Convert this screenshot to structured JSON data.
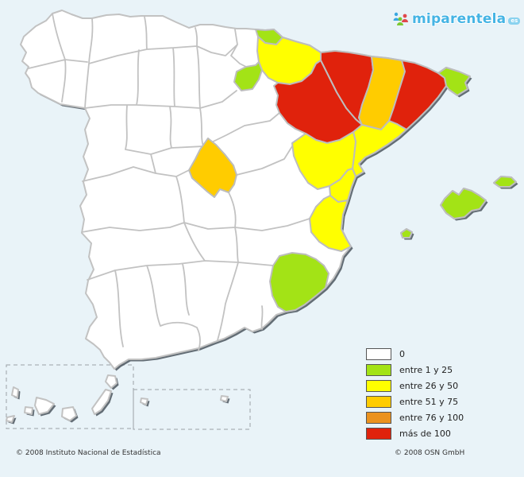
{
  "logo": {
    "brand": "miparentela",
    "suffix": "es"
  },
  "legend": {
    "items": [
      {
        "label": "0",
        "color": "#FFFFFF"
      },
      {
        "label": "entre 1 y 25",
        "color": "#A3E316"
      },
      {
        "label": "entre 26 y 50",
        "color": "#FFFF00"
      },
      {
        "label": "entre 51 y 75",
        "color": "#FFCC00"
      },
      {
        "label": "entre 76 y 100",
        "color": "#EB921F"
      },
      {
        "label": "más de 100",
        "color": "#E0220C"
      }
    ]
  },
  "footer": {
    "left": "© 2008 Instituto Nacional de Estadística",
    "right": "© 2008 OSN GmbH"
  },
  "map": {
    "country": "España",
    "sea_color": "#E9F3F8",
    "shadow_color": "#4C565F",
    "land_color": "#FFFFFF",
    "border_color": "#C2C2C2",
    "default_category": "0",
    "regions": [
      {
        "name": "Gipuzkoa",
        "slug": "gipuzkoa",
        "category": "entre 1 y 25"
      },
      {
        "name": "La Rioja",
        "slug": "la-rioja",
        "category": "entre 1 y 25"
      },
      {
        "name": "Navarra",
        "slug": "navarra",
        "category": "entre 26 y 50"
      },
      {
        "name": "Huesca",
        "slug": "huesca",
        "category": "más de 100"
      },
      {
        "name": "Zaragoza",
        "slug": "zaragoza",
        "category": "más de 100"
      },
      {
        "name": "Lleida",
        "slug": "lleida",
        "category": "entre 51 y 75"
      },
      {
        "name": "Barcelona",
        "slug": "barcelona",
        "category": "más de 100"
      },
      {
        "name": "Girona",
        "slug": "girona",
        "category": "entre 1 y 25"
      },
      {
        "name": "Tarragona",
        "slug": "tarragona",
        "category": "entre 26 y 50"
      },
      {
        "name": "Teruel",
        "slug": "teruel",
        "category": "entre 26 y 50"
      },
      {
        "name": "Castellón",
        "slug": "castellon",
        "category": "entre 26 y 50"
      },
      {
        "name": "Valencia",
        "slug": "valencia",
        "category": "entre 26 y 50"
      },
      {
        "name": "Madrid",
        "slug": "madrid",
        "category": "entre 51 y 75"
      },
      {
        "name": "Murcia",
        "slug": "murcia",
        "category": "entre 1 y 25"
      },
      {
        "name": "Illes Balears",
        "slug": "illes-balears",
        "category": "entre 1 y 25"
      }
    ]
  }
}
